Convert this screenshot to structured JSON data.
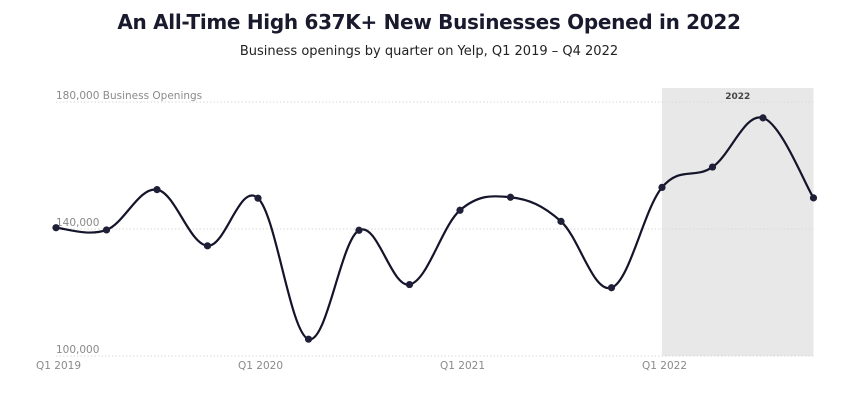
{
  "header": {
    "title": "An All-Time High 637K+ New Businesses Opened in 2022",
    "subtitle": "Business openings by quarter on Yelp, Q1 2019 – Q4 2022"
  },
  "colors": {
    "line": "#14142b",
    "point": "#1f1f38",
    "grid": "#d9d9d9",
    "highlight": "#e8e8e8",
    "axis_text": "#8a8a8a"
  },
  "chart_data": {
    "type": "line",
    "x": [
      "Q1 2019",
      "Q2 2019",
      "Q3 2019",
      "Q4 2019",
      "Q1 2020",
      "Q2 2020",
      "Q3 2020",
      "Q4 2020",
      "Q1 2021",
      "Q2 2021",
      "Q3 2021",
      "Q4 2021",
      "Q1 2022",
      "Q2 2022",
      "Q3 2022",
      "Q4 2022"
    ],
    "values": [
      140400,
      139700,
      152400,
      134700,
      149700,
      105300,
      139600,
      122500,
      145900,
      150000,
      142400,
      121500,
      153100,
      159500,
      175000,
      149800
    ],
    "y_ticks": [
      {
        "value": 100000,
        "label": "100,000"
      },
      {
        "value": 140000,
        "label": "140,000"
      },
      {
        "value": 180000,
        "label": "180,000 Business Openings"
      }
    ],
    "x_ticks": [
      {
        "index": 0,
        "label": "Q1 2019"
      },
      {
        "index": 4,
        "label": "Q1 2020"
      },
      {
        "index": 8,
        "label": "Q1 2021"
      },
      {
        "index": 12,
        "label": "Q1 2022"
      }
    ],
    "ylim": [
      100000,
      180000
    ],
    "grid": true,
    "highlight": {
      "from_index": 12,
      "to_index": 15,
      "label": "2022"
    }
  }
}
